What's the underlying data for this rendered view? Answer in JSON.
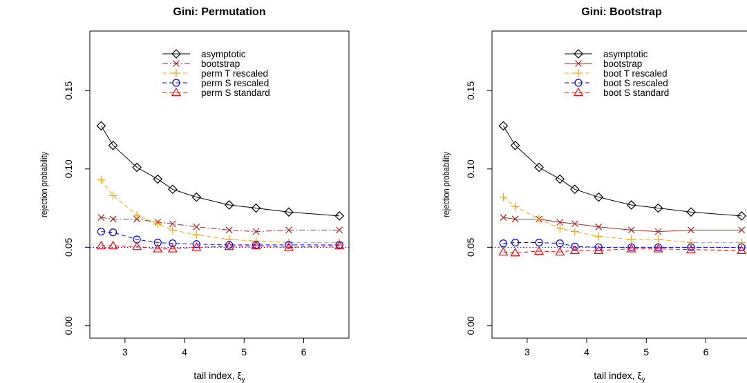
{
  "chart_data": [
    {
      "type": "line",
      "title": "Gini: Permutation",
      "x_label": {
        "text": "tail index, ξ",
        "subscript": "y"
      },
      "y_label": "rejection probability",
      "x": [
        2.6,
        2.8,
        3.2,
        3.55,
        3.8,
        4.2,
        4.75,
        5.2,
        5.75,
        6.6
      ],
      "xlim": [
        2.41,
        6.76
      ],
      "xticks": [
        3,
        4,
        5,
        6
      ],
      "ylim": [
        -0.008,
        0.188
      ],
      "yticks": [
        {
          "value": 0,
          "label": "0.00"
        },
        {
          "value": 0.05,
          "label": "0.05"
        },
        {
          "value": 0.1,
          "label": "0.10"
        },
        {
          "value": 0.15,
          "label": "0.15"
        }
      ],
      "reference_line": {
        "value": 0.05,
        "color": "#0000ff"
      },
      "legend": "top",
      "series": [
        {
          "name": "asymptotic",
          "color": "#000000",
          "marker": "diamond",
          "dash": "solid",
          "values": [
            0.1275,
            0.115,
            0.101,
            0.0935,
            0.087,
            0.082,
            0.077,
            0.075,
            0.0725,
            0.07
          ]
        },
        {
          "name": "bootstrap",
          "color": "#b22222",
          "marker": "x",
          "dash": "dashdot",
          "values": [
            0.069,
            0.068,
            0.068,
            0.066,
            0.065,
            0.063,
            0.061,
            0.06,
            0.061,
            0.061
          ]
        },
        {
          "name": "perm T rescaled",
          "color": "#ffa500",
          "marker": "plus",
          "dash": "dashed",
          "values": [
            0.093,
            0.083,
            0.0705,
            0.065,
            0.061,
            0.058,
            0.055,
            0.054,
            0.053,
            0.053
          ]
        },
        {
          "name": "perm S rescaled",
          "color": "#0000ff",
          "marker": "circle",
          "dash": "dashed",
          "values": [
            0.06,
            0.0595,
            0.055,
            0.053,
            0.0525,
            0.052,
            0.0515,
            0.0515,
            0.0515,
            0.0515
          ]
        },
        {
          "name": "perm S standard",
          "color": "#ff0000",
          "marker": "triangle",
          "dash": "dashed",
          "values": [
            0.051,
            0.051,
            0.0505,
            0.049,
            0.049,
            0.05,
            0.0505,
            0.051,
            0.05,
            0.051
          ]
        }
      ]
    },
    {
      "type": "line",
      "title": "Gini: Bootstrap",
      "x_label": {
        "text": "tail index, ξ",
        "subscript": "y"
      },
      "y_label": "rejection probability",
      "x": [
        2.6,
        2.8,
        3.2,
        3.55,
        3.8,
        4.2,
        4.75,
        5.2,
        5.75,
        6.6
      ],
      "xlim": [
        2.41,
        6.76
      ],
      "xticks": [
        3,
        4,
        5,
        6
      ],
      "ylim": [
        -0.008,
        0.188
      ],
      "yticks": [
        {
          "value": 0,
          "label": "0.00"
        },
        {
          "value": 0.05,
          "label": "0.05"
        },
        {
          "value": 0.1,
          "label": "0.10"
        },
        {
          "value": 0.15,
          "label": "0.15"
        }
      ],
      "reference_line": {
        "value": 0.05,
        "color": "#0000ff"
      },
      "legend": "top",
      "series": [
        {
          "name": "asymptotic",
          "color": "#000000",
          "marker": "diamond",
          "dash": "solid",
          "values": [
            0.1275,
            0.115,
            0.101,
            0.0935,
            0.087,
            0.082,
            0.077,
            0.075,
            0.0725,
            0.07
          ]
        },
        {
          "name": "bootstrap",
          "color": "#b22222",
          "marker": "x",
          "dash": "solid",
          "values": [
            0.069,
            0.068,
            0.068,
            0.066,
            0.065,
            0.063,
            0.061,
            0.06,
            0.061,
            0.061
          ]
        },
        {
          "name": "boot T rescaled",
          "color": "#ffa500",
          "marker": "plus",
          "dash": "dashed",
          "values": [
            0.082,
            0.076,
            0.068,
            0.062,
            0.06,
            0.057,
            0.055,
            0.055,
            0.053,
            0.053
          ]
        },
        {
          "name": "boot S rescaled",
          "color": "#0000ff",
          "marker": "circle",
          "dash": "dashed",
          "values": [
            0.0525,
            0.053,
            0.053,
            0.0525,
            0.0505,
            0.05,
            0.05,
            0.05,
            0.05,
            0.05
          ]
        },
        {
          "name": "boot S standard",
          "color": "#ff0000",
          "marker": "triangle",
          "dash": "dashed",
          "values": [
            0.047,
            0.0465,
            0.0475,
            0.047,
            0.048,
            0.048,
            0.049,
            0.049,
            0.0485,
            0.048
          ]
        }
      ]
    }
  ]
}
